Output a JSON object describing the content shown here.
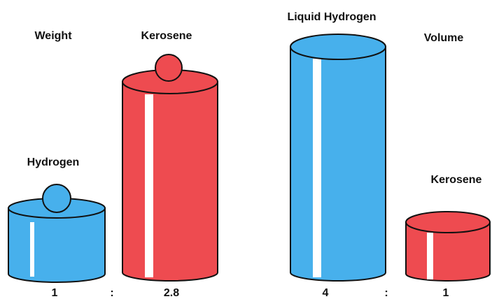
{
  "weight": {
    "title": "Weight",
    "hydrogen": "Hydrogen",
    "kerosene": "Kerosene",
    "ratio": {
      "left": "1",
      "separator": ":",
      "right": "2.8"
    }
  },
  "volume": {
    "title": "Volume",
    "hydrogen": "Liquid Hydrogen",
    "kerosene": "Kerosene",
    "ratio": {
      "left": "4",
      "separator": ":",
      "right": "1"
    }
  }
}
